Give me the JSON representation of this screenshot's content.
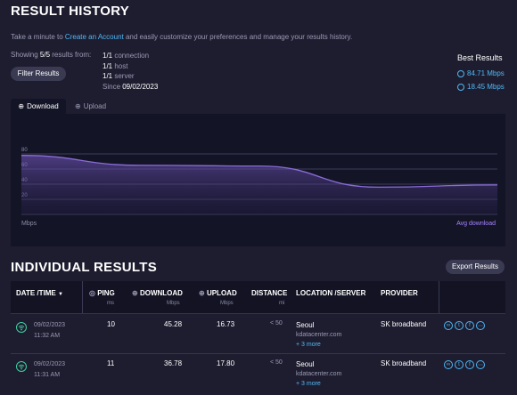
{
  "header": {
    "title": "RESULT HISTORY",
    "intro_prefix": "Take a minute to ",
    "intro_link": "Create an Account",
    "intro_suffix": " and easily customize your preferences and manage your results history."
  },
  "summary": {
    "showing_prefix": "Showing ",
    "showing_count": "5/5",
    "showing_suffix": " results from:",
    "filter_label": "Filter Results",
    "connection_count": "1/1",
    "connection_label": "connection",
    "host_count": "1/1",
    "host_label": "host",
    "server_count": "1/1",
    "server_label": "server",
    "since_prefix": "Since ",
    "since_date": "09/02/2023"
  },
  "best": {
    "title": "Best Results",
    "download": "84.71 Mbps",
    "upload": "18.45 Mbps"
  },
  "tabs": {
    "download": "Download",
    "upload": "Upload"
  },
  "chart_data": {
    "type": "area",
    "ylabel": "Mbps",
    "ylim": [
      0,
      100
    ],
    "yticks": [
      "80",
      "60",
      "40",
      "20"
    ],
    "legend": "Avg download",
    "x": [
      0,
      1,
      2,
      3,
      4
    ],
    "values": [
      78,
      65,
      64,
      36,
      39
    ]
  },
  "individual": {
    "title": "INDIVIDUAL RESULTS",
    "export_label": "Export Results",
    "columns": {
      "date": "DATE /TIME",
      "ping": "PING",
      "ping_unit": "ms",
      "download": "DOWNLOAD",
      "download_unit": "Mbps",
      "upload": "UPLOAD",
      "upload_unit": "Mbps",
      "distance": "DISTANCE",
      "distance_unit": "mi",
      "location": "LOCATION /SERVER",
      "provider": "PROVIDER"
    },
    "rows": [
      {
        "date": "09/02/2023",
        "time": "11:32 AM",
        "ping": "10",
        "download": "45.28",
        "upload": "16.73",
        "distance": "< 50",
        "city": "Seoul",
        "server": "kdatacenter.com",
        "more": "+ 3 more",
        "provider": "SK broadband"
      },
      {
        "date": "09/02/2023",
        "time": "11:31 AM",
        "ping": "11",
        "download": "36.78",
        "upload": "17.80",
        "distance": "< 50",
        "city": "Seoul",
        "server": "kdatacenter.com",
        "more": "+ 3 more",
        "provider": "SK broadband"
      }
    ]
  },
  "colors": {
    "accent": "#4fb8f5",
    "chart_line": "#8a6cd8",
    "legend": "#a684ff"
  }
}
